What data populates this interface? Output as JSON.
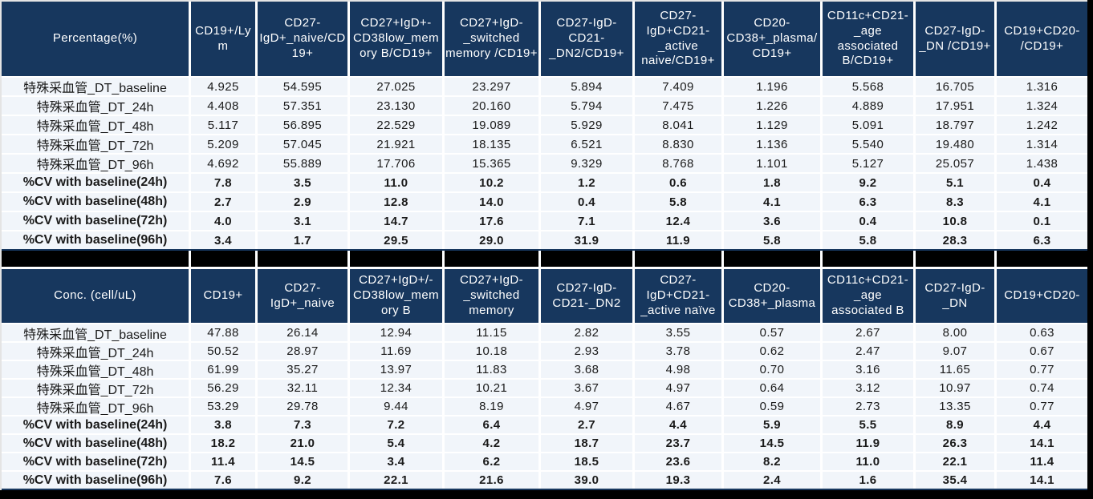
{
  "accent_colors": {
    "header_bg": "#17375E",
    "row_bg": "#F1F5FA",
    "separator": "#000000"
  },
  "table1": {
    "title": "Percentage(%)",
    "columns": [
      "CD19+/Ly\nm",
      "CD27-\nIgD+_naive/CD\n19+",
      "CD27+IgD+-\nCD38low_mem\nory B/CD19+",
      "CD27+IgD-\n_switched\nmemory /CD19+",
      "CD27-IgD-\nCD21-\n_DN2/CD19+",
      "CD27-\nIgD+CD21-\n_active\nnaive/CD19+",
      "CD20-\nCD38+_plasma/\nCD19+",
      "CD11c+CD21-\n_age\nassociated\nB/CD19+",
      "CD27-IgD-\n_DN /CD19+",
      "CD19+CD20-\n/CD19+"
    ],
    "rows": [
      {
        "label": "特殊采血管_DT_baseline",
        "bold": false,
        "values": [
          "4.925",
          "54.595",
          "27.025",
          "23.297",
          "5.894",
          "7.409",
          "1.196",
          "5.568",
          "16.705",
          "1.316"
        ]
      },
      {
        "label": "特殊采血管_DT_24h",
        "bold": false,
        "values": [
          "4.408",
          "57.351",
          "23.130",
          "20.160",
          "5.794",
          "7.475",
          "1.226",
          "4.889",
          "17.951",
          "1.324"
        ]
      },
      {
        "label": "特殊采血管_DT_48h",
        "bold": false,
        "values": [
          "5.117",
          "56.895",
          "22.529",
          "19.089",
          "5.929",
          "8.041",
          "1.129",
          "5.091",
          "18.797",
          "1.242"
        ]
      },
      {
        "label": "特殊采血管_DT_72h",
        "bold": false,
        "values": [
          "5.209",
          "57.045",
          "21.921",
          "18.135",
          "6.521",
          "8.830",
          "1.136",
          "5.540",
          "19.480",
          "1.314"
        ]
      },
      {
        "label": "特殊采血管_DT_96h",
        "bold": false,
        "values": [
          "4.692",
          "55.889",
          "17.706",
          "15.365",
          "9.329",
          "8.768",
          "1.101",
          "5.127",
          "25.057",
          "1.438"
        ]
      },
      {
        "label": "%CV with baseline(24h)",
        "bold": true,
        "values": [
          "7.8",
          "3.5",
          "11.0",
          "10.2",
          "1.2",
          "0.6",
          "1.8",
          "9.2",
          "5.1",
          "0.4"
        ]
      },
      {
        "label": "%CV with baseline(48h)",
        "bold": true,
        "values": [
          "2.7",
          "2.9",
          "12.8",
          "14.0",
          "0.4",
          "5.8",
          "4.1",
          "6.3",
          "8.3",
          "4.1"
        ]
      },
      {
        "label": "%CV with baseline(72h)",
        "bold": true,
        "values": [
          "4.0",
          "3.1",
          "14.7",
          "17.6",
          "7.1",
          "12.4",
          "3.6",
          "0.4",
          "10.8",
          "0.1"
        ]
      },
      {
        "label": "%CV with baseline(96h)",
        "bold": true,
        "values": [
          "3.4",
          "1.7",
          "29.5",
          "29.0",
          "31.9",
          "11.9",
          "5.8",
          "5.8",
          "28.3",
          "6.3"
        ]
      }
    ]
  },
  "table2": {
    "title": "Conc. (cell/uL)",
    "columns": [
      "CD19+",
      "CD27-\nIgD+_naive",
      "CD27+IgD+/-\nCD38low_mem\nory B",
      "CD27+IgD-\n_switched\nmemory",
      "CD27-IgD-\nCD21-_DN2",
      "CD27-\nIgD+CD21-\n_active naïve",
      "CD20-\nCD38+_plasma",
      "CD11c+CD21-\n_age\nassociated B",
      "CD27-IgD-\n_DN",
      "CD19+CD20-"
    ],
    "rows": [
      {
        "label": "特殊采血管_DT_baseline",
        "bold": false,
        "values": [
          "47.88",
          "26.14",
          "12.94",
          "11.15",
          "2.82",
          "3.55",
          "0.57",
          "2.67",
          "8.00",
          "0.63"
        ]
      },
      {
        "label": "特殊采血管_DT_24h",
        "bold": false,
        "values": [
          "50.52",
          "28.97",
          "11.69",
          "10.18",
          "2.93",
          "3.78",
          "0.62",
          "2.47",
          "9.07",
          "0.67"
        ]
      },
      {
        "label": "特殊采血管_DT_48h",
        "bold": false,
        "values": [
          "61.99",
          "35.27",
          "13.97",
          "11.83",
          "3.68",
          "4.98",
          "0.70",
          "3.16",
          "11.65",
          "0.77"
        ]
      },
      {
        "label": "特殊采血管_DT_72h",
        "bold": false,
        "values": [
          "56.29",
          "32.11",
          "12.34",
          "10.21",
          "3.67",
          "4.97",
          "0.64",
          "3.12",
          "10.97",
          "0.74"
        ]
      },
      {
        "label": "特殊采血管_DT_96h",
        "bold": false,
        "values": [
          "53.29",
          "29.78",
          "9.44",
          "8.19",
          "4.97",
          "4.67",
          "0.59",
          "2.73",
          "13.35",
          "0.77"
        ]
      },
      {
        "label": "%CV with baseline(24h)",
        "bold": true,
        "values": [
          "3.8",
          "7.3",
          "7.2",
          "6.4",
          "2.7",
          "4.4",
          "5.9",
          "5.5",
          "8.9",
          "4.4"
        ]
      },
      {
        "label": "%CV with baseline(48h)",
        "bold": true,
        "values": [
          "18.2",
          "21.0",
          "5.4",
          "4.2",
          "18.7",
          "23.7",
          "14.5",
          "11.9",
          "26.3",
          "14.1"
        ]
      },
      {
        "label": "%CV with baseline(72h)",
        "bold": true,
        "values": [
          "11.4",
          "14.5",
          "3.4",
          "6.2",
          "18.5",
          "23.6",
          "8.2",
          "11.0",
          "22.1",
          "11.4"
        ]
      },
      {
        "label": "%CV with baseline(96h)",
        "bold": true,
        "values": [
          "7.6",
          "9.2",
          "22.1",
          "21.6",
          "39.0",
          "19.3",
          "2.4",
          "1.6",
          "35.4",
          "14.1"
        ]
      }
    ]
  }
}
